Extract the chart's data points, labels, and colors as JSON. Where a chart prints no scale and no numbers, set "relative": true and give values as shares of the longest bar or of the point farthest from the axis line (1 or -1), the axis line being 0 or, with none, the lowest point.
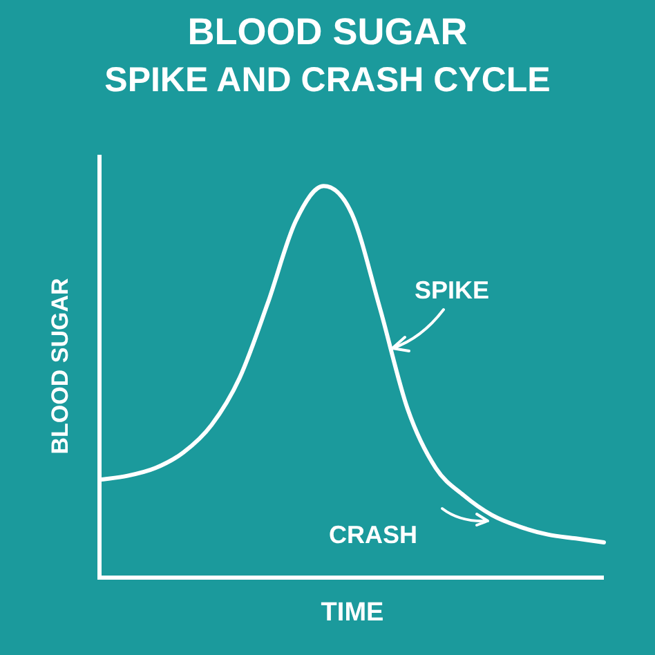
{
  "chart_data": {
    "type": "line",
    "title": "BLOOD SUGAR",
    "subtitle": "SPIKE AND CRASH CYCLE",
    "xlabel": "TIME",
    "ylabel": "BLOOD SUGAR",
    "relative": true,
    "categories": [
      null,
      null,
      null,
      null,
      null,
      null,
      null,
      null,
      null,
      null,
      null,
      null,
      null,
      null,
      null,
      null,
      null,
      null,
      null
    ],
    "series": [
      {
        "color": "#ffffff",
        "values": [
          0.25,
          0.26,
          0.28,
          0.32,
          0.39,
          0.51,
          0.7,
          0.91,
          1,
          0.93,
          0.69,
          0.43,
          0.28,
          0.21,
          0.16,
          0.13,
          0.11,
          0.1,
          0.09
        ]
      }
    ],
    "annotations": [
      "SPIKE",
      "CRASH"
    ],
    "marker": "none",
    "line_style": "solid",
    "legend": false
  }
}
